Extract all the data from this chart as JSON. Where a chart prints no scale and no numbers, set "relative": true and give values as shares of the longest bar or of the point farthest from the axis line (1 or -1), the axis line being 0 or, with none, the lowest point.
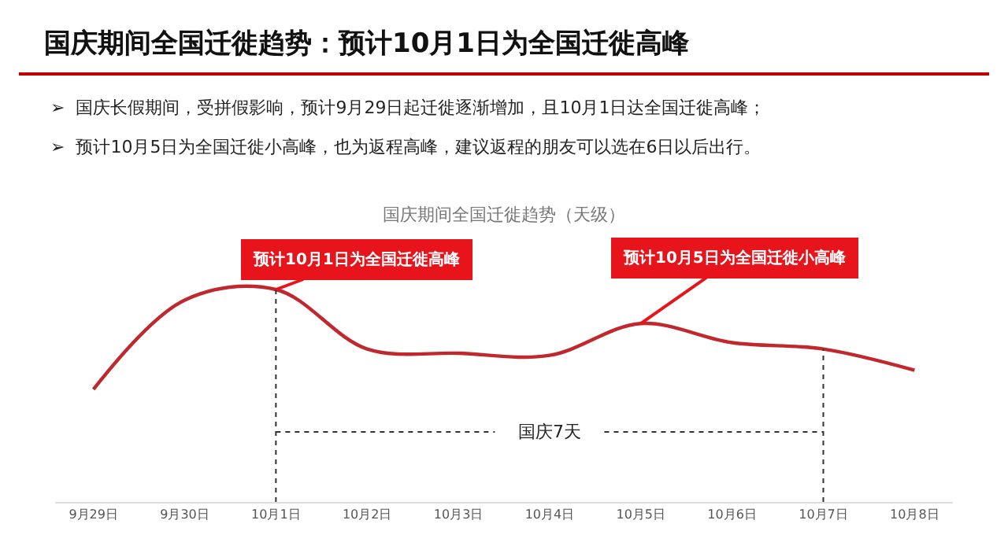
{
  "chart_data": {
    "type": "line",
    "title": "国庆期间全国迁徙趋势：预计10月1日为全国迁徙高峰",
    "subtitle": "国庆期间全国迁徙趋势（天级）",
    "categories": [
      "9月29日",
      "9月30日",
      "10月1日",
      "10月2日",
      "10月3日",
      "10月4日",
      "10月5日",
      "10月6日",
      "10月7日",
      "10月8日"
    ],
    "relative": true,
    "series": [
      {
        "color": "#c0282e",
        "values": [
          0.53,
          0.95,
          1.0,
          0.72,
          0.7,
          0.69,
          0.84,
          0.75,
          0.72,
          0.62
        ]
      }
    ],
    "ref_lines": [
      {
        "axis": "x",
        "value": "10月1日",
        "color": "#333333",
        "line_style": "dotted"
      },
      {
        "axis": "x",
        "value": "10月7日",
        "color": "#333333",
        "line_style": "dotted"
      }
    ],
    "annotations": [
      "➢  国庆长假期间，受拼假影响，预计9月29日起迁徙逐渐增加，且10月1日达全国迁徙高峰；",
      "➢  预计10月5日为全国迁徙小高峰，也为返程高峰，建议返程的朋友可以选在6日以后出行。",
      {
        "text": "预计10月1日为全国迁徙高峰",
        "x": "10月1日",
        "y": 1.0
      },
      {
        "text": "预计10月5日为全国迁徙小高峰",
        "x": "10月5日",
        "y": 0.84
      },
      "国庆7天"
    ]
  }
}
